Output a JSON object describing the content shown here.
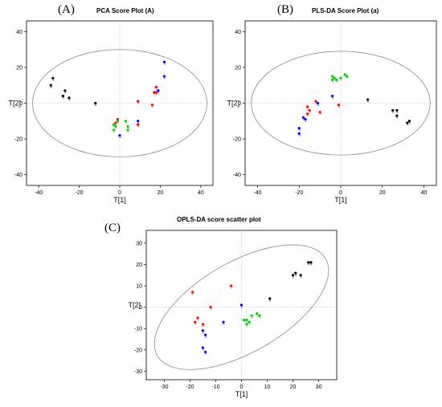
{
  "chart_data": [
    {
      "panel_label": "(A)",
      "title": "PCA Score Plot (A)",
      "type": "scatter",
      "xlabel": "T[1]",
      "ylabel": "T[2]",
      "xlim": [
        -46,
        46
      ],
      "ylim": [
        -46,
        46
      ],
      "xticks": [
        -40,
        -20,
        0,
        20,
        40
      ],
      "yticks": [
        -40,
        -20,
        0,
        20,
        40
      ],
      "xtick_labels": [
        "-40",
        "-20",
        "0",
        "20",
        "40"
      ],
      "ytick_labels": [
        "-40",
        "-20",
        "0",
        "20",
        "40"
      ],
      "ellipse": {
        "cx": 0,
        "cy": 0,
        "rx": 43,
        "ry": 30,
        "angle": 0
      },
      "series": [
        {
          "color": "#000000",
          "points": [
            [
              -33,
              14
            ],
            [
              -34,
              10
            ],
            [
              -27,
              7
            ],
            [
              -28,
              4
            ],
            [
              -25,
              3
            ],
            [
              -12,
              0
            ]
          ]
        },
        {
          "color": "#ff0000",
          "points": [
            [
              -1,
              -9
            ],
            [
              -2,
              -11
            ],
            [
              9,
              1
            ],
            [
              16,
              -1
            ],
            [
              18,
              9
            ],
            [
              18,
              6
            ],
            [
              17,
              6
            ],
            [
              9,
              -12
            ]
          ]
        },
        {
          "color": "#00cc00",
          "points": [
            [
              -2,
              -13
            ],
            [
              -3,
              -15
            ],
            [
              -1,
              -10
            ],
            [
              3,
              -10
            ],
            [
              4,
              -13
            ],
            [
              4,
              -15
            ],
            [
              -3,
              -12
            ]
          ]
        },
        {
          "color": "#0000ff",
          "points": [
            [
              22,
              23
            ],
            [
              22,
              15
            ],
            [
              19,
              7
            ],
            [
              9,
              -10
            ],
            [
              0,
              -18
            ]
          ]
        }
      ]
    },
    {
      "panel_label": "(B)",
      "title": "PLS-DA Score Plot (a)",
      "type": "scatter",
      "xlabel": "T[1]",
      "ylabel": "T[2]",
      "xlim": [
        -46,
        46
      ],
      "ylim": [
        -46,
        46
      ],
      "xticks": [
        -40,
        -20,
        0,
        20,
        40
      ],
      "yticks": [
        -40,
        -20,
        0,
        20,
        40
      ],
      "xtick_labels": [
        "-40",
        "-20",
        "0",
        "20",
        "40"
      ],
      "ytick_labels": [
        "-40",
        "-20",
        "0",
        "20",
        "40"
      ],
      "ellipse": {
        "cx": 0,
        "cy": 0,
        "rx": 43,
        "ry": 29,
        "angle": 0
      },
      "series": [
        {
          "color": "#000000",
          "points": [
            [
              13,
              2
            ],
            [
              25,
              -4
            ],
            [
              27,
              -4
            ],
            [
              27,
              -7
            ],
            [
              33,
              -10
            ],
            [
              32,
              -11
            ]
          ]
        },
        {
          "color": "#ff0000",
          "points": [
            [
              -16,
              -2
            ],
            [
              -15,
              -4
            ],
            [
              -16,
              -6
            ],
            [
              -10,
              -5
            ],
            [
              -12,
              1
            ],
            [
              -1,
              -1
            ]
          ]
        },
        {
          "color": "#00cc00",
          "points": [
            [
              -4,
              15
            ],
            [
              -4,
              13
            ],
            [
              -2,
              13
            ],
            [
              0,
              14
            ],
            [
              2,
              16
            ],
            [
              3,
              15
            ],
            [
              -3,
              14
            ]
          ]
        },
        {
          "color": "#0000ff",
          "points": [
            [
              -20,
              -14
            ],
            [
              -20,
              -17
            ],
            [
              -18,
              -8
            ],
            [
              -17,
              -9
            ],
            [
              -11,
              0
            ],
            [
              -4,
              4
            ]
          ]
        }
      ]
    },
    {
      "panel_label": "(C)",
      "title": "OPLS-DA score scatter plot",
      "type": "scatter",
      "xlabel": "T[1]",
      "ylabel": "T[2]",
      "xlim": [
        -37,
        37
      ],
      "ylim": [
        -34,
        36
      ],
      "xticks": [
        -30,
        -20,
        -10,
        0,
        10,
        20,
        30
      ],
      "yticks": [
        -30,
        -20,
        -10,
        0,
        10,
        20,
        30
      ],
      "xtick_labels": [
        "-30",
        "-20",
        "-10",
        "0",
        "10",
        "20",
        "30"
      ],
      "ytick_labels": [
        "-30",
        "-20",
        "-10",
        "0",
        "10",
        "20",
        "30"
      ],
      "ellipse": {
        "cx": 0,
        "cy": 0,
        "rx": 40,
        "ry": 20,
        "angle": 38
      },
      "series": [
        {
          "color": "#000000",
          "points": [
            [
              21,
              16
            ],
            [
              20,
              15
            ],
            [
              23,
              15
            ],
            [
              26,
              21
            ],
            [
              27,
              21
            ],
            [
              11,
              4
            ]
          ]
        },
        {
          "color": "#ff0000",
          "points": [
            [
              -19,
              7
            ],
            [
              -4,
              10
            ],
            [
              -12,
              0
            ],
            [
              -17,
              -5
            ],
            [
              -18,
              -7
            ],
            [
              -15,
              -8
            ]
          ]
        },
        {
          "color": "#00cc00",
          "points": [
            [
              1,
              -6
            ],
            [
              2,
              -6
            ],
            [
              4,
              -4
            ],
            [
              6,
              -3
            ],
            [
              7,
              -4
            ],
            [
              2,
              -8
            ],
            [
              3,
              -7
            ]
          ]
        },
        {
          "color": "#0000ff",
          "points": [
            [
              0,
              1
            ],
            [
              -7,
              -7
            ],
            [
              -15,
              -11
            ],
            [
              -14,
              -13
            ],
            [
              -15,
              -19
            ],
            [
              -14,
              -21
            ]
          ]
        }
      ]
    }
  ]
}
